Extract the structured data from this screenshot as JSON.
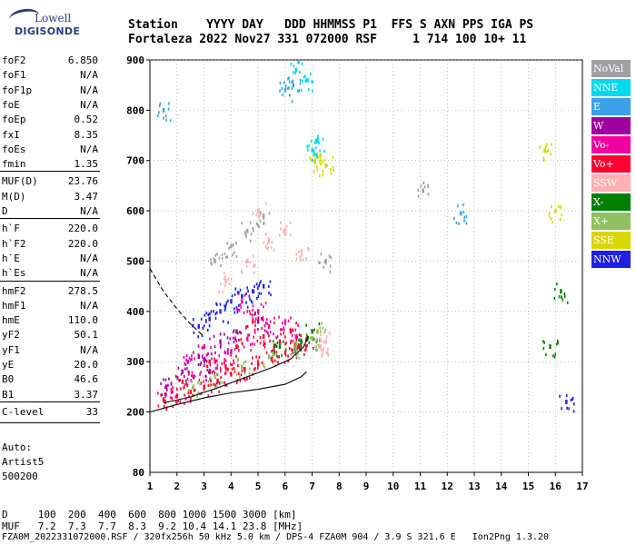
{
  "logo": {
    "line1": "Lowell",
    "line2": "DIGISONDE"
  },
  "header": {
    "line1": "Station    YYYY DAY   DDD HHMMSS P1  FFS S AXN PPS IGA PS",
    "line2": "Fortaleza 2022 Nov27 331 072000 RSF     1 714 100 10+ 11"
  },
  "params": [
    {
      "name": "foF2",
      "value": "6.850"
    },
    {
      "name": "foF1",
      "value": "N/A"
    },
    {
      "name": "foF1p",
      "value": "N/A"
    },
    {
      "name": "foE",
      "value": "N/A"
    },
    {
      "name": "foEp",
      "value": "0.52"
    },
    {
      "name": "fxI",
      "value": "8.35"
    },
    {
      "name": "foEs",
      "value": "N/A"
    },
    {
      "name": "fmin",
      "value": "1.35"
    },
    {
      "name": "MUF(D)",
      "value": "23.76"
    },
    {
      "name": "M(D)",
      "value": "3.47"
    },
    {
      "name": "D",
      "value": "N/A"
    },
    {
      "name": "h`F",
      "value": "220.0"
    },
    {
      "name": "h`F2",
      "value": "220.0"
    },
    {
      "name": "h`E",
      "value": "N/A"
    },
    {
      "name": "h`Es",
      "value": "N/A"
    },
    {
      "name": "hmF2",
      "value": "278.5"
    },
    {
      "name": "hmF1",
      "value": "N/A"
    },
    {
      "name": "hmE",
      "value": "110.0"
    },
    {
      "name": "yF2",
      "value": "50.1"
    },
    {
      "name": "yF1",
      "value": "N/A"
    },
    {
      "name": "yE",
      "value": "20.0"
    },
    {
      "name": "B0",
      "value": "46.6"
    },
    {
      "name": "B1",
      "value": "3.37"
    },
    {
      "name": "C-level",
      "value": "33"
    }
  ],
  "auto": {
    "l1": "Auto:",
    "l2": "Artist5",
    "l3": "500200"
  },
  "legend": [
    {
      "label": "NoVal",
      "color": "#a0a0a0",
      "text": "#ffffff"
    },
    {
      "label": "NNE",
      "color": "#00d8f0",
      "text": "#ffffff"
    },
    {
      "label": "E",
      "color": "#3aa0e8",
      "text": "#ffffff"
    },
    {
      "label": "W",
      "color": "#a000a0",
      "text": "#ffffff"
    },
    {
      "label": "Vo-",
      "color": "#f000a0",
      "text": "#ffffff"
    },
    {
      "label": "Vo+",
      "color": "#ff0030",
      "text": "#ffffff"
    },
    {
      "label": "SSW",
      "color": "#ffb0b0",
      "text": "#ffffff"
    },
    {
      "label": "X-",
      "color": "#008000",
      "text": "#ffffff"
    },
    {
      "label": "X+",
      "color": "#90c060",
      "text": "#ffffff"
    },
    {
      "label": "SSE",
      "color": "#d8d800",
      "text": "#ffffff"
    },
    {
      "label": "NNW",
      "color": "#2020e0",
      "text": "#ffffff"
    }
  ],
  "footer": {
    "d_row": "D     100  200  400  600  800 1000 1500 3000 [km]",
    "muf_row": "MUF   7.2  7.3  7.7  8.3  9.2 10.4 14.1 23.8 [MHz]",
    "file_row": "FZA0M_2022331072000.RSF / 320fx256h 50 kHz 5.0 km / DPS-4 FZA0M 904 / 3.9 S 321.6 E   Ion2Png 1.3.20"
  },
  "chart_data": {
    "type": "scatter",
    "title": "",
    "xlabel": "",
    "ylabel": "",
    "xlim": [
      1,
      17
    ],
    "ylim": [
      80,
      900
    ],
    "x_ticks": [
      "1",
      "2",
      "3",
      "4",
      "5",
      "6",
      "7",
      "8",
      "9",
      "10",
      "11",
      "12",
      "13",
      "14",
      "15",
      "16",
      "17"
    ],
    "y_ticks": [
      "200",
      "300",
      "400",
      "500",
      "600",
      "700",
      "800",
      "900"
    ],
    "y_bottom_label": "80",
    "grid": "dotted",
    "series": [
      {
        "name": "Vo+",
        "color": "#ff0030",
        "points": [
          [
            1.5,
            225
          ],
          [
            2.0,
            232
          ],
          [
            2.5,
            240
          ],
          [
            3.0,
            250
          ],
          [
            3.5,
            262
          ],
          [
            4.0,
            275
          ],
          [
            4.5,
            285
          ],
          [
            5.0,
            295
          ],
          [
            5.5,
            305
          ],
          [
            6.0,
            318
          ],
          [
            6.5,
            330
          ],
          [
            6.8,
            345
          ],
          [
            2.2,
            260
          ],
          [
            3.2,
            300
          ],
          [
            4.2,
            330
          ],
          [
            5.2,
            350
          ],
          [
            6.2,
            360
          ],
          [
            4.8,
            380
          ],
          [
            5.8,
            340
          ],
          [
            3.8,
            290
          ]
        ]
      },
      {
        "name": "Vo-",
        "color": "#f000a0",
        "points": [
          [
            1.8,
            240
          ],
          [
            2.6,
            270
          ],
          [
            3.4,
            300
          ],
          [
            4.0,
            320
          ],
          [
            4.6,
            345
          ],
          [
            5.4,
            370
          ],
          [
            6.0,
            380
          ],
          [
            3.0,
            330
          ],
          [
            2.4,
            300
          ],
          [
            5.0,
            400
          ],
          [
            6.4,
            350
          ],
          [
            4.4,
            420
          ]
        ]
      },
      {
        "name": "W",
        "color": "#a000a0",
        "points": [
          [
            1.6,
            250
          ],
          [
            2.2,
            280
          ],
          [
            2.8,
            310
          ],
          [
            3.6,
            340
          ],
          [
            4.2,
            360
          ],
          [
            5.0,
            380
          ],
          [
            3.2,
            280
          ]
        ]
      },
      {
        "name": "NNW",
        "color": "#2020e0",
        "points": [
          [
            2.8,
            370
          ],
          [
            3.2,
            385
          ],
          [
            3.6,
            400
          ],
          [
            4.0,
            420
          ],
          [
            4.4,
            430
          ],
          [
            4.8,
            440
          ],
          [
            5.2,
            450
          ],
          [
            16.4,
            220
          ]
        ]
      },
      {
        "name": "X+",
        "color": "#90c060",
        "points": [
          [
            2.6,
            250
          ],
          [
            3.4,
            270
          ],
          [
            4.4,
            290
          ],
          [
            5.4,
            310
          ],
          [
            6.4,
            330
          ],
          [
            7.0,
            345
          ],
          [
            7.2,
            360
          ]
        ]
      },
      {
        "name": "X-",
        "color": "#008000",
        "points": [
          [
            5.8,
            330
          ],
          [
            6.6,
            340
          ],
          [
            7.0,
            360
          ],
          [
            15.8,
            330
          ],
          [
            16.2,
            440
          ]
        ]
      },
      {
        "name": "SSW",
        "color": "#ffb0b0",
        "points": [
          [
            3.8,
            460
          ],
          [
            4.6,
            500
          ],
          [
            5.4,
            540
          ],
          [
            6.0,
            560
          ],
          [
            6.6,
            520
          ],
          [
            5.0,
            600
          ],
          [
            7.3,
            330
          ],
          [
            7.5,
            340
          ]
        ]
      },
      {
        "name": "SSE",
        "color": "#d8d800",
        "points": [
          [
            7.1,
            700
          ],
          [
            7.3,
            710
          ],
          [
            7.5,
            690
          ],
          [
            15.6,
            720
          ],
          [
            16.0,
            600
          ]
        ]
      },
      {
        "name": "NNE",
        "color": "#00d8f0",
        "points": [
          [
            7.0,
            720
          ],
          [
            7.2,
            740
          ],
          [
            6.8,
            860
          ],
          [
            6.4,
            880
          ]
        ]
      },
      {
        "name": "E",
        "color": "#3aa0e8",
        "points": [
          [
            6.3,
            850
          ],
          [
            6.0,
            840
          ],
          [
            12.5,
            595
          ],
          [
            1.5,
            800
          ]
        ]
      },
      {
        "name": "NoVal",
        "color": "#a0a0a0",
        "points": [
          [
            3.4,
            500
          ],
          [
            4.0,
            530
          ],
          [
            4.6,
            560
          ],
          [
            5.2,
            590
          ],
          [
            11.1,
            640
          ],
          [
            7.5,
            500
          ]
        ]
      }
    ],
    "curves": [
      {
        "name": "profile",
        "style": "solid",
        "points": [
          [
            1.0,
            200
          ],
          [
            2.0,
            215
          ],
          [
            3.0,
            228
          ],
          [
            4.0,
            238
          ],
          [
            5.0,
            245
          ],
          [
            6.0,
            255
          ],
          [
            6.6,
            270
          ],
          [
            6.8,
            280
          ]
        ]
      },
      {
        "name": "profile-2",
        "style": "solid",
        "points": [
          [
            1.5,
            218
          ],
          [
            2.5,
            230
          ],
          [
            3.5,
            248
          ],
          [
            4.5,
            268
          ],
          [
            5.5,
            288
          ],
          [
            6.2,
            305
          ],
          [
            6.7,
            330
          ],
          [
            6.85,
            350
          ]
        ]
      },
      {
        "name": "profile-dashed",
        "style": "dashed",
        "points": [
          [
            1.0,
            485
          ],
          [
            1.5,
            440
          ],
          [
            2.0,
            405
          ],
          [
            2.5,
            375
          ],
          [
            3.0,
            350
          ]
        ]
      }
    ]
  }
}
